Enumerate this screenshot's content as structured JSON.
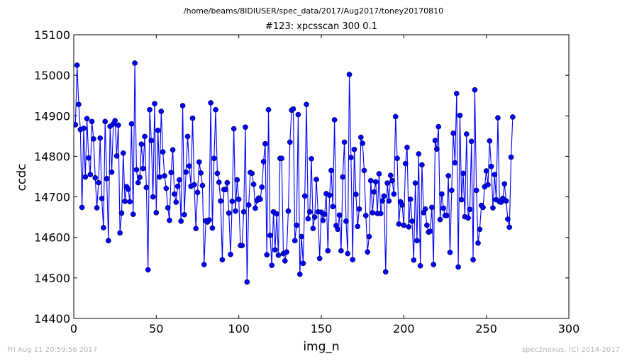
{
  "header": {
    "path": "/home/beams/8IDIUSER/spec_data/2017/Aug2017/toney20170810",
    "scan": "#123: xpcsscan 300 0.1"
  },
  "footer": {
    "date": "Fri Aug 11 20:59:56 2017",
    "credit": "spec2nexus, (C) 2014-2017"
  },
  "colors": {
    "series": "#0000ff",
    "footer": "#b5b5b5"
  },
  "chart_data": {
    "type": "line",
    "title": "#123: xpcsscan 300 0.1",
    "xlabel": "img_n",
    "ylabel": "ccdc",
    "xlim": [
      0,
      300
    ],
    "ylim": [
      14400,
      15100
    ],
    "xticks": [
      0,
      50,
      100,
      150,
      200,
      250,
      300
    ],
    "yticks": [
      14400,
      14500,
      14600,
      14700,
      14800,
      14900,
      15000,
      15100
    ],
    "grid": false,
    "legend": "none",
    "marker": "circle",
    "series": [
      {
        "x_start": 1,
        "x_step": 1,
        "values": [
          14878,
          15025,
          14928,
          14866,
          14674,
          14869,
          14749,
          14893,
          14796,
          14755,
          14886,
          14843,
          14747,
          14673,
          14735,
          14845,
          14696,
          14624,
          14886,
          14745,
          14592,
          14874,
          14761,
          14880,
          14888,
          14801,
          14877,
          14611,
          14660,
          14808,
          14689,
          14725,
          14719,
          14688,
          14880,
          14657,
          15030,
          14767,
          14735,
          14748,
          14830,
          14770,
          14849,
          14723,
          14520,
          14915,
          14839,
          14700,
          14930,
          14661,
          14864,
          14749,
          14911,
          14811,
          14752,
          14721,
          14673,
          14642,
          14760,
          14816,
          14707,
          14687,
          14726,
          14742,
          14640,
          14925,
          14656,
          14761,
          14849,
          14776,
          14726,
          14894,
          14730,
          14622,
          14711,
          14786,
          14759,
          14728,
          14533,
          14641,
          14638,
          14643,
          14932,
          14623,
          14795,
          14915,
          14758,
          14736,
          14690,
          14545,
          14718,
          14718,
          14735,
          14660,
          14558,
          14689,
          14868,
          14665,
          14742,
          14694,
          14580,
          14580,
          14663,
          14872,
          14490,
          14680,
          14760,
          14758,
          14731,
          14672,
          14691,
          14697,
          14694,
          14724,
          14787,
          14831,
          14557,
          14915,
          14605,
          14531,
          14663,
          14569,
          14658,
          14556,
          14795,
          14795,
          14560,
          14542,
          14564,
          14665,
          14835,
          14914,
          14917,
          14592,
          14630,
          14903,
          14509,
          14602,
          14536,
          14702,
          14928,
          14646,
          14663,
          14794,
          14622,
          14650,
          14743,
          14663,
          14548,
          14662,
          14642,
          14657,
          14708,
          14567,
          14704,
          14765,
          14676,
          14890,
          14629,
          14620,
          14655,
          14567,
          14749,
          14835,
          14640,
          14560,
          15002,
          14797,
          14545,
          14817,
          14706,
          14627,
          14670,
          14847,
          14832,
          14765,
          14654,
          14564,
          14602,
          14740,
          14661,
          14712,
          14737,
          14659,
          14757,
          14659,
          14690,
          14702,
          14515,
          14734,
          14690,
          14753,
          14740,
          14707,
          14898,
          14795,
          14633,
          14688,
          14680,
          14630,
          14782,
          14822,
          14626,
          14694,
          14640,
          14544,
          14734,
          14592,
          14806,
          14530,
          14779,
          14661,
          14670,
          14630,
          14613,
          14615,
          14674,
          14533,
          14839,
          14818,
          14873,
          14644,
          14707,
          14672,
          14654,
          14654,
          14752,
          14563,
          14716,
          14857,
          14784,
          14955,
          14527,
          14901,
          14693,
          14758,
          14651,
          14855,
          14648,
          14669,
          14837,
          14545,
          14964,
          14716,
          14586,
          14620,
          14679,
          14674,
          14725,
          14764,
          14730,
          14838,
          14775,
          14673,
          14755,
          14693,
          14895,
          14688,
          14687,
          14696,
          14732,
          14690,
          14645,
          14625,
          14798,
          14897
        ]
      }
    ]
  }
}
